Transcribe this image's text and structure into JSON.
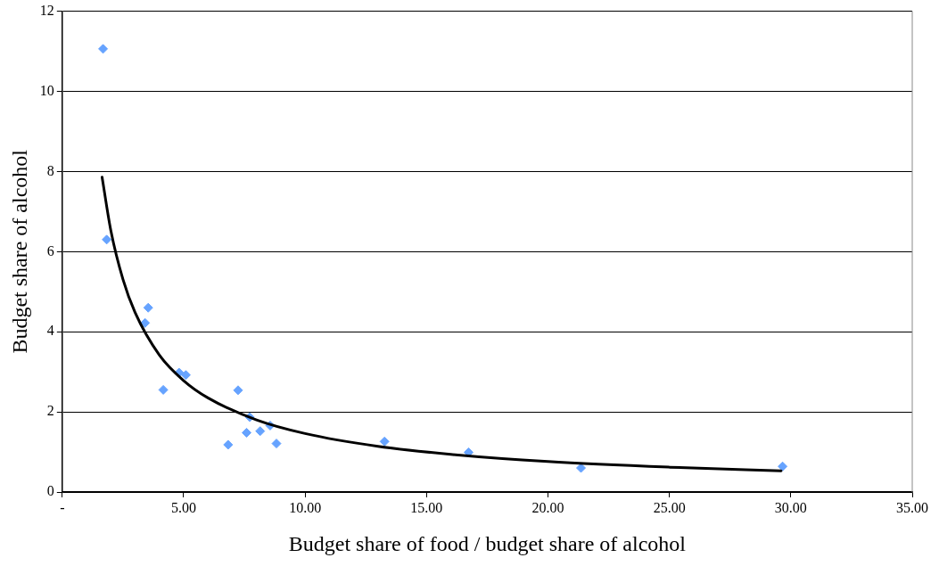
{
  "chart_data": {
    "type": "scatter",
    "xlabel": "Budget share of food / budget share of alcohol",
    "ylabel": "Budget share of alcohol",
    "xlim": [
      0,
      35
    ],
    "xticks": [
      {
        "value": 0,
        "label": "-"
      },
      {
        "value": 5,
        "label": "5.00"
      },
      {
        "value": 10,
        "label": "10.00"
      },
      {
        "value": 15,
        "label": "15.00"
      },
      {
        "value": 20,
        "label": "20.00"
      },
      {
        "value": 25,
        "label": "25.00"
      },
      {
        "value": 30,
        "label": "30.00"
      },
      {
        "value": 35,
        "label": "35.00"
      }
    ],
    "ylim": [
      0,
      12
    ],
    "yticks": [
      0,
      2,
      4,
      6,
      8,
      10,
      12
    ],
    "grid": "y",
    "legend": false,
    "marker": "diamond",
    "series": [
      {
        "type": "scatter",
        "color": "#66a3ff",
        "x": [
          1.68,
          1.83,
          3.54,
          3.41,
          4.16,
          4.81,
          5.09,
          7.24,
          6.83,
          7.72,
          7.59,
          8.15,
          8.56,
          8.82,
          13.27,
          16.73,
          21.36,
          29.66
        ],
        "values": [
          11.06,
          6.3,
          4.6,
          4.22,
          2.55,
          2.98,
          2.92,
          2.54,
          1.18,
          1.87,
          1.48,
          1.52,
          1.66,
          1.21,
          1.26,
          0.99,
          0.6,
          0.64
        ]
      },
      {
        "type": "line",
        "color": "#000000",
        "marker": "none",
        "line_style": "solid",
        "x": [
          1.64,
          2,
          2.5,
          3,
          4,
          5,
          6,
          8,
          10,
          13,
          16,
          20,
          25,
          29.6
        ],
        "values": [
          7.86,
          6.53,
          5.31,
          4.48,
          3.42,
          2.78,
          2.35,
          1.8,
          1.46,
          1.14,
          0.94,
          0.76,
          0.62,
          0.53
        ]
      }
    ]
  }
}
